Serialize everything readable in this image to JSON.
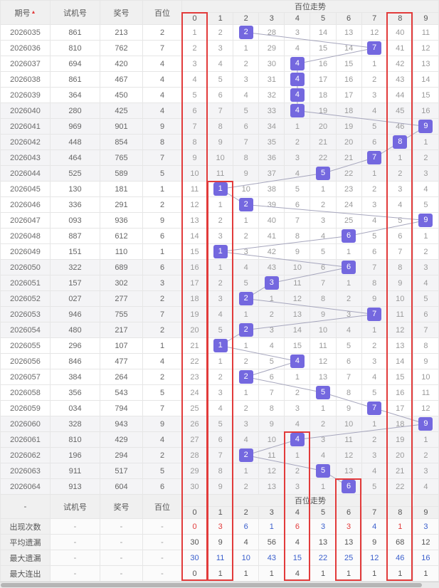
{
  "header": {
    "issue_label": "期号",
    "sort_icon": "▲",
    "test_label": "试机号",
    "win_label": "奖号",
    "bai_label": "百位",
    "trend_title": "百位走势",
    "digits": [
      "0",
      "1",
      "2",
      "3",
      "4",
      "5",
      "6",
      "7",
      "8",
      "9"
    ]
  },
  "footer_header": {
    "issue_label": "-",
    "test_label": "试机号",
    "win_label": "奖号",
    "bai_label": "百位",
    "trend_title": "百位走势",
    "dash": "-"
  },
  "chart_data": {
    "type": "table",
    "title": "百位走势",
    "columns": [
      "期号",
      "试机号",
      "奖号",
      "百位",
      "0",
      "1",
      "2",
      "3",
      "4",
      "5",
      "6",
      "7",
      "8",
      "9"
    ],
    "rows": [
      {
        "issue": "2026035",
        "test": "861",
        "win": "213",
        "digit": 2,
        "cells": [
          1,
          2,
          2,
          28,
          3,
          14,
          13,
          12,
          40,
          11
        ]
      },
      {
        "issue": "2026036",
        "test": "810",
        "win": "762",
        "digit": 7,
        "cells": [
          2,
          3,
          1,
          29,
          4,
          15,
          14,
          7,
          41,
          12
        ]
      },
      {
        "issue": "2026037",
        "test": "694",
        "win": "420",
        "digit": 4,
        "cells": [
          3,
          4,
          2,
          30,
          4,
          16,
          15,
          1,
          42,
          13
        ]
      },
      {
        "issue": "2026038",
        "test": "861",
        "win": "467",
        "digit": 4,
        "cells": [
          4,
          5,
          3,
          31,
          4,
          17,
          16,
          2,
          43,
          14
        ]
      },
      {
        "issue": "2026039",
        "test": "364",
        "win": "450",
        "digit": 4,
        "cells": [
          5,
          6,
          4,
          32,
          4,
          18,
          17,
          3,
          44,
          15
        ]
      },
      {
        "issue": "2026040",
        "test": "280",
        "win": "425",
        "digit": 4,
        "cells": [
          6,
          7,
          5,
          33,
          4,
          19,
          18,
          4,
          45,
          16
        ]
      },
      {
        "issue": "2026041",
        "test": "969",
        "win": "901",
        "digit": 9,
        "cells": [
          7,
          8,
          6,
          34,
          1,
          20,
          19,
          5,
          46,
          9
        ]
      },
      {
        "issue": "2026042",
        "test": "448",
        "win": "854",
        "digit": 8,
        "cells": [
          8,
          9,
          7,
          35,
          2,
          21,
          20,
          6,
          8,
          1
        ]
      },
      {
        "issue": "2026043",
        "test": "464",
        "win": "765",
        "digit": 7,
        "cells": [
          9,
          10,
          8,
          36,
          3,
          22,
          21,
          7,
          1,
          2
        ]
      },
      {
        "issue": "2026044",
        "test": "525",
        "win": "589",
        "digit": 5,
        "cells": [
          10,
          11,
          9,
          37,
          4,
          5,
          22,
          1,
          2,
          3
        ]
      },
      {
        "issue": "2026045",
        "test": "130",
        "win": "181",
        "digit": 1,
        "cells": [
          11,
          1,
          10,
          38,
          5,
          1,
          23,
          2,
          3,
          4
        ]
      },
      {
        "issue": "2026046",
        "test": "336",
        "win": "291",
        "digit": 2,
        "cells": [
          12,
          1,
          2,
          39,
          6,
          2,
          24,
          3,
          4,
          5
        ]
      },
      {
        "issue": "2026047",
        "test": "093",
        "win": "936",
        "digit": 9,
        "cells": [
          13,
          2,
          1,
          40,
          7,
          3,
          25,
          4,
          5,
          9
        ]
      },
      {
        "issue": "2026048",
        "test": "887",
        "win": "612",
        "digit": 6,
        "cells": [
          14,
          3,
          2,
          41,
          8,
          4,
          6,
          5,
          6,
          1
        ]
      },
      {
        "issue": "2026049",
        "test": "151",
        "win": "110",
        "digit": 1,
        "cells": [
          15,
          1,
          3,
          42,
          9,
          5,
          1,
          6,
          7,
          2
        ]
      },
      {
        "issue": "2026050",
        "test": "322",
        "win": "689",
        "digit": 6,
        "cells": [
          16,
          1,
          4,
          43,
          10,
          6,
          6,
          7,
          8,
          3
        ]
      },
      {
        "issue": "2026051",
        "test": "157",
        "win": "302",
        "digit": 3,
        "cells": [
          17,
          2,
          5,
          3,
          11,
          7,
          1,
          8,
          9,
          4
        ]
      },
      {
        "issue": "2026052",
        "test": "027",
        "win": "277",
        "digit": 2,
        "cells": [
          18,
          3,
          2,
          1,
          12,
          8,
          2,
          9,
          10,
          5
        ]
      },
      {
        "issue": "2026053",
        "test": "946",
        "win": "755",
        "digit": 7,
        "cells": [
          19,
          4,
          1,
          2,
          13,
          9,
          3,
          7,
          11,
          6
        ]
      },
      {
        "issue": "2026054",
        "test": "480",
        "win": "217",
        "digit": 2,
        "cells": [
          20,
          5,
          2,
          3,
          14,
          10,
          4,
          1,
          12,
          7
        ]
      },
      {
        "issue": "2026055",
        "test": "296",
        "win": "107",
        "digit": 1,
        "cells": [
          21,
          1,
          1,
          4,
          15,
          11,
          5,
          2,
          13,
          8
        ]
      },
      {
        "issue": "2026056",
        "test": "846",
        "win": "477",
        "digit": 4,
        "cells": [
          22,
          1,
          2,
          5,
          4,
          12,
          6,
          3,
          14,
          9
        ]
      },
      {
        "issue": "2026057",
        "test": "384",
        "win": "264",
        "digit": 2,
        "cells": [
          23,
          2,
          2,
          6,
          1,
          13,
          7,
          4,
          15,
          10
        ]
      },
      {
        "issue": "2026058",
        "test": "356",
        "win": "543",
        "digit": 5,
        "cells": [
          24,
          3,
          1,
          7,
          2,
          5,
          8,
          5,
          16,
          11
        ]
      },
      {
        "issue": "2026059",
        "test": "034",
        "win": "794",
        "digit": 7,
        "cells": [
          25,
          4,
          2,
          8,
          3,
          1,
          9,
          7,
          17,
          12
        ]
      },
      {
        "issue": "2026060",
        "test": "328",
        "win": "943",
        "digit": 9,
        "cells": [
          26,
          5,
          3,
          9,
          4,
          2,
          10,
          1,
          18,
          9
        ]
      },
      {
        "issue": "2026061",
        "test": "810",
        "win": "429",
        "digit": 4,
        "cells": [
          27,
          6,
          4,
          10,
          4,
          3,
          11,
          2,
          19,
          1
        ]
      },
      {
        "issue": "2026062",
        "test": "196",
        "win": "294",
        "digit": 2,
        "cells": [
          28,
          7,
          2,
          11,
          1,
          4,
          12,
          3,
          20,
          2
        ]
      },
      {
        "issue": "2026063",
        "test": "911",
        "win": "517",
        "digit": 5,
        "cells": [
          29,
          8,
          1,
          12,
          2,
          5,
          13,
          4,
          21,
          3
        ]
      },
      {
        "issue": "2026064",
        "test": "913",
        "win": "604",
        "digit": 6,
        "cells": [
          30,
          9,
          2,
          13,
          3,
          1,
          6,
          5,
          22,
          4
        ]
      }
    ],
    "summary": [
      {
        "name": "appear-count",
        "label": "出现次数",
        "values": [
          0,
          3,
          6,
          1,
          6,
          3,
          3,
          4,
          1,
          3
        ],
        "colors": [
          "red",
          "red",
          "blue",
          "blue",
          "red",
          "blue",
          "red",
          "blue",
          "red",
          "blue"
        ]
      },
      {
        "name": "avg-miss",
        "label": "平均遗漏",
        "values": [
          30,
          9,
          4,
          56,
          4,
          13,
          13,
          9,
          68,
          12
        ],
        "colors": [
          "dark",
          "dark",
          "dark",
          "dark",
          "dark",
          "dark",
          "dark",
          "dark",
          "dark",
          "dark"
        ]
      },
      {
        "name": "max-miss",
        "label": "最大遗漏",
        "values": [
          30,
          11,
          10,
          43,
          15,
          22,
          25,
          12,
          46,
          16
        ],
        "colors": [
          "blue",
          "blue",
          "blue",
          "blue",
          "blue",
          "blue",
          "blue",
          "blue",
          "blue",
          "blue"
        ]
      },
      {
        "name": "max-streak",
        "label": "最大连出",
        "values": [
          0,
          1,
          1,
          1,
          4,
          1,
          1,
          1,
          1,
          1
        ],
        "colors": [
          "dark",
          "dark",
          "dark",
          "dark",
          "dark",
          "dark",
          "dark",
          "dark",
          "dark",
          "dark"
        ]
      }
    ]
  },
  "red_boxes": [
    {
      "col": 0,
      "from_issue": ""
    },
    {
      "col": 1,
      "from_issue": "2026045"
    },
    {
      "col": 4,
      "from_issue": "2026061"
    },
    {
      "col": 6,
      "from_issue": "2026064"
    },
    {
      "col": 8,
      "from_issue": ""
    }
  ],
  "colors": {
    "hit_bg": "#7468df",
    "red": "#e23b3b",
    "blue": "#3a5fcd",
    "line": "#a6a6bd",
    "header_bg": "#f0f0f0",
    "band_bg": "#f4f4f6",
    "border": "#e6e6e6"
  }
}
